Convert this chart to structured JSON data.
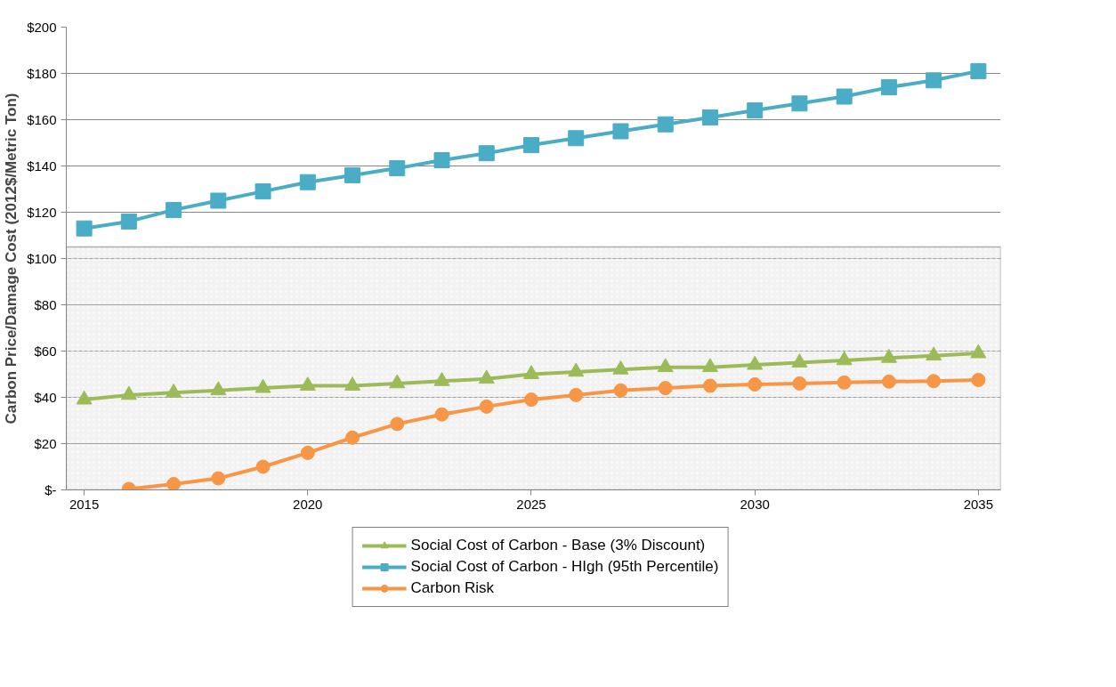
{
  "chart_data": {
    "type": "line",
    "ylabel": "Carbon Price/Damage Cost (2012$/Metric Ton)",
    "x": [
      2015,
      2016,
      2017,
      2018,
      2019,
      2020,
      2021,
      2022,
      2023,
      2024,
      2025,
      2026,
      2027,
      2028,
      2029,
      2030,
      2031,
      2032,
      2033,
      2034,
      2035
    ],
    "series": [
      {
        "name": "Social Cost of Carbon - Base (3% Discount)",
        "color": "#9bbb59",
        "marker": "triangle",
        "values": [
          39,
          41,
          42,
          43,
          44,
          45,
          45,
          46,
          47,
          48,
          50,
          51,
          52,
          53,
          53,
          54,
          55,
          56,
          57,
          58,
          59
        ]
      },
      {
        "name": "Social Cost of Carbon - HIgh (95th Percentile)",
        "color": "#4bacc6",
        "marker": "square",
        "values": [
          113,
          116,
          121,
          125,
          129,
          133,
          136,
          139,
          142.5,
          145.5,
          149,
          152,
          155,
          158,
          161,
          164,
          167,
          170,
          174,
          177,
          181
        ]
      },
      {
        "name": "Carbon Risk",
        "color": "#f79646",
        "marker": "circle",
        "values": [
          null,
          0.4,
          2.5,
          5,
          10,
          16,
          22.6,
          28.5,
          32.6,
          36,
          39,
          41,
          43,
          44,
          45,
          45.6,
          46,
          46.4,
          46.8,
          47,
          47.5
        ]
      }
    ],
    "xlim": [
      2014.6,
      2035.5
    ],
    "xticks": [
      2015,
      2020,
      2025,
      2030,
      2035
    ],
    "ylim": [
      0,
      200
    ],
    "yticks": [
      {
        "value": 0,
        "label": "$-"
      },
      {
        "value": 20,
        "label": "$20"
      },
      {
        "value": 40,
        "label": "$40"
      },
      {
        "value": 60,
        "label": "$60"
      },
      {
        "value": 80,
        "label": "$80"
      },
      {
        "value": 100,
        "label": "$100"
      },
      {
        "value": 120,
        "label": "$120"
      },
      {
        "value": 140,
        "label": "$140"
      },
      {
        "value": 160,
        "label": "$160"
      },
      {
        "value": 180,
        "label": "$180"
      },
      {
        "value": 200,
        "label": "$200"
      }
    ],
    "bands": [
      {
        "axis": "y",
        "from": 0,
        "to": 105,
        "color": "#d9d9d9"
      }
    ],
    "grid": "y",
    "legend": "bottom",
    "line_style": "solid"
  }
}
